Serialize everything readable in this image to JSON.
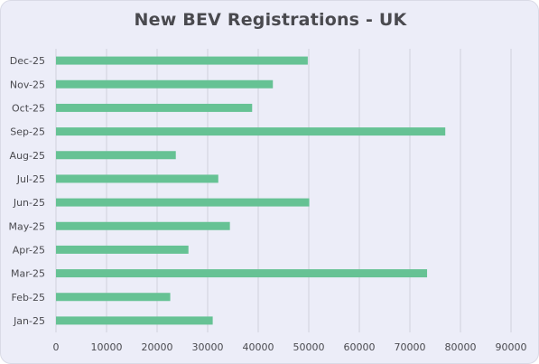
{
  "chart_data": {
    "type": "bar",
    "orientation": "horizontal",
    "title": "New BEV Registrations - UK",
    "xlabel": "",
    "ylabel": "",
    "categories": [
      "Jan-25",
      "Feb-25",
      "Mar-25",
      "Apr-25",
      "May-25",
      "Jun-25",
      "Jul-25",
      "Aug-25",
      "Sep-25",
      "Oct-25",
      "Nov-25",
      "Dec-25"
    ],
    "values": [
      31000,
      22600,
      73400,
      26200,
      34400,
      50100,
      32100,
      23700,
      77000,
      38800,
      42900,
      49800
    ],
    "xlim": [
      0,
      90000
    ],
    "x_ticks": [
      0,
      10000,
      20000,
      30000,
      40000,
      50000,
      60000,
      70000,
      80000,
      90000
    ],
    "grid": "vertical",
    "legend": "none",
    "colors": {
      "bar": "#66c294",
      "background": "#ecedf8",
      "grid": "#d0d1dd",
      "text": "#4a4a4f"
    }
  }
}
